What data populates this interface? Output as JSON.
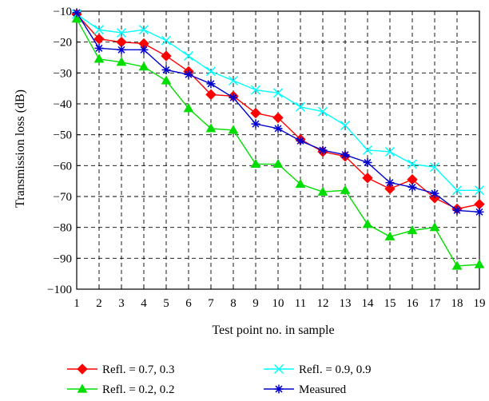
{
  "chart_data": {
    "type": "line",
    "title": "",
    "xlabel": "Test point no. in sample",
    "ylabel": "Transmission loss (dB)",
    "x": [
      1,
      2,
      3,
      4,
      5,
      6,
      7,
      8,
      9,
      10,
      11,
      12,
      13,
      14,
      15,
      16,
      17,
      18,
      19
    ],
    "xlim": [
      1,
      19
    ],
    "ylim": [
      -100,
      -10
    ],
    "yticks": [
      -10,
      -20,
      -30,
      -40,
      -50,
      -60,
      -70,
      -80,
      -90,
      -100
    ],
    "grid": "dashed",
    "legend_position": "bottom",
    "series": [
      {
        "name": "Refl. = 0.7, 0.3",
        "color": "#ff0000",
        "marker": "diamond",
        "values": [
          -11,
          -19,
          -20,
          -20.5,
          -24.5,
          -29.5,
          -37,
          -37.5,
          -43,
          -44.5,
          -51.5,
          -55.5,
          -57,
          -64,
          -67.5,
          -64.5,
          -70.5,
          -74,
          -72.5
        ]
      },
      {
        "name": "Refl. = 0.9, 0.9",
        "color": "#00ffff",
        "marker": "x",
        "values": [
          -11,
          -16,
          -17,
          -16,
          -19.5,
          -24.5,
          -29.5,
          -32.5,
          -35.5,
          -36.5,
          -41,
          -42.5,
          -47,
          -55,
          -55.5,
          -59.5,
          -60.5,
          -68,
          -68
        ]
      },
      {
        "name": "Refl. = 0.2, 0.2",
        "color": "#00dd00",
        "marker": "triangle",
        "values": [
          -12.5,
          -25.5,
          -26.5,
          -28,
          -32.5,
          -41.5,
          -48,
          -48.5,
          -59.5,
          -59.5,
          -66,
          -68.5,
          -68,
          -79,
          -83,
          -81,
          -80,
          -92.5,
          -92
        ]
      },
      {
        "name": "Measured",
        "color": "#0000cc",
        "marker": "asterisk",
        "values": [
          -10.5,
          -22,
          -22.5,
          -22.5,
          -29,
          -30.5,
          -33.5,
          -38,
          -46.5,
          -48,
          -52,
          -55,
          -56.5,
          -59,
          -65.5,
          -67,
          -69,
          -74.5,
          -75
        ]
      }
    ]
  }
}
